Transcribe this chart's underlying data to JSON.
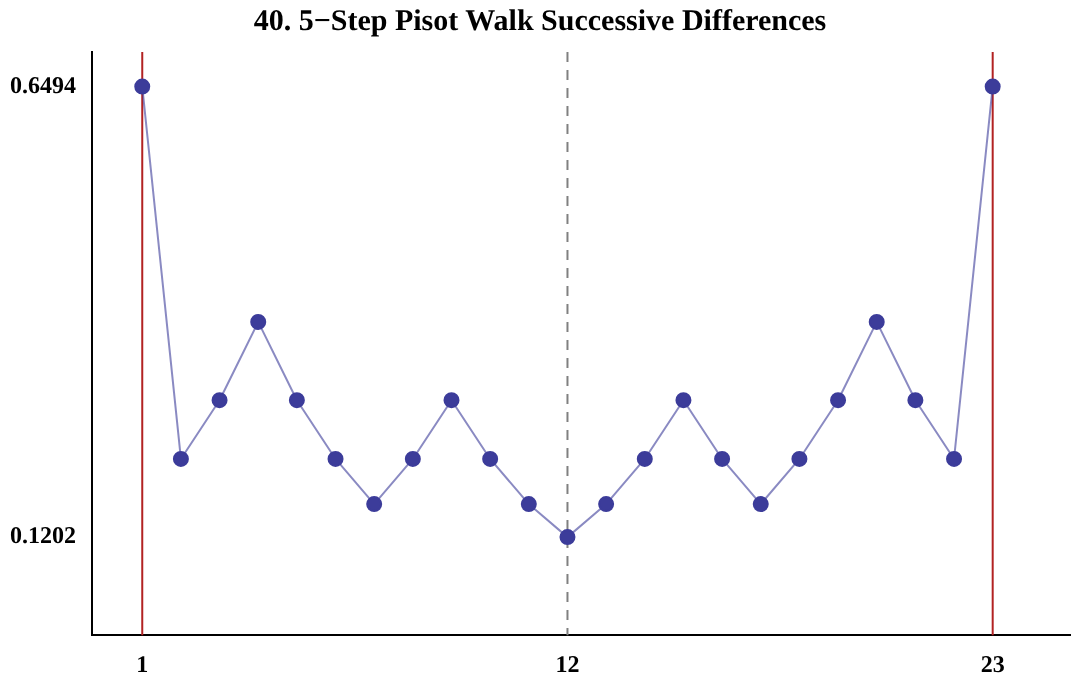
{
  "chart_data": {
    "type": "line",
    "title": "40. 5−Step Pisot Walk Successive Differences",
    "x": [
      1,
      2,
      3,
      4,
      5,
      6,
      7,
      8,
      9,
      10,
      11,
      12,
      13,
      14,
      15,
      16,
      17,
      18,
      19,
      20,
      21,
      22,
      23
    ],
    "series": [
      {
        "color": "#3c3c9a",
        "values": [
          0.6494,
          0.212,
          0.281,
          0.373,
          0.281,
          0.212,
          0.159,
          0.212,
          0.281,
          0.212,
          0.159,
          0.1202,
          0.159,
          0.212,
          0.281,
          0.212,
          0.159,
          0.212,
          0.281,
          0.373,
          0.281,
          0.212,
          0.6494
        ]
      }
    ],
    "xlim": [
      -0.3,
      25
    ],
    "xticks": [
      1,
      12,
      23
    ],
    "ylim": [
      0.005,
      0.69
    ],
    "yticks": [
      0.1202,
      0.6494
    ],
    "marker": "circle",
    "grid": false,
    "legend": false,
    "ref_lines": [
      {
        "axis": "x",
        "value": 1,
        "color": "#b22222",
        "line_style": "solid"
      },
      {
        "axis": "x",
        "value": 12,
        "color": "#808080",
        "line_style": "dashed"
      },
      {
        "axis": "x",
        "value": 23,
        "color": "#b22222",
        "line_style": "solid"
      }
    ]
  }
}
